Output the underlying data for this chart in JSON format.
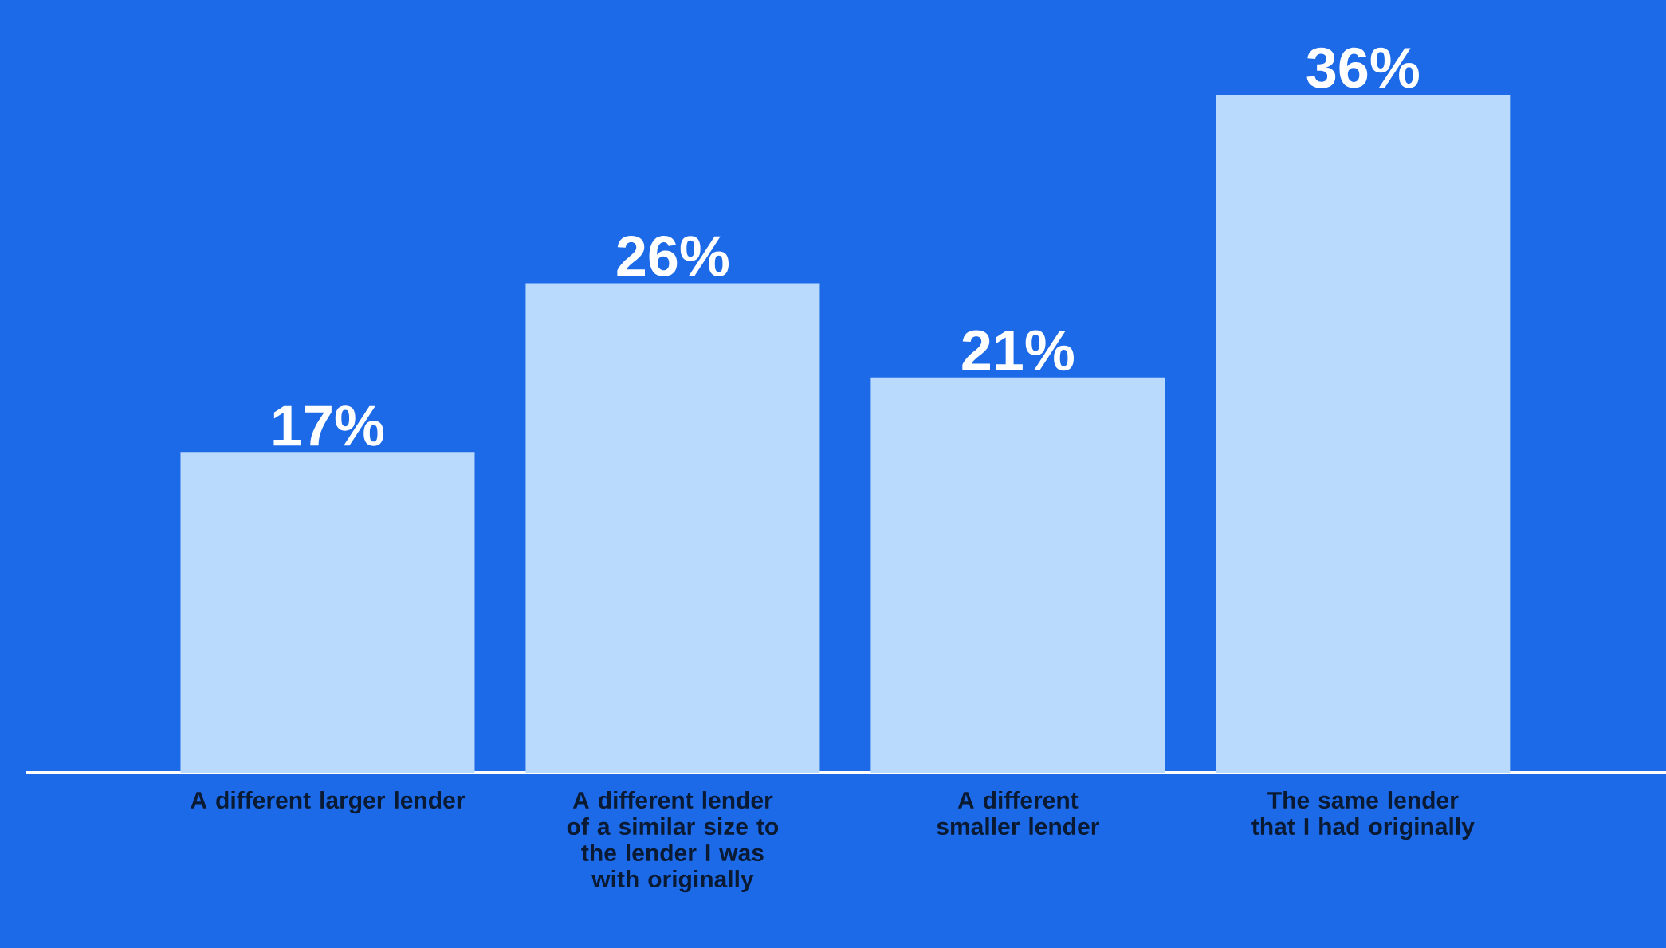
{
  "chart_data": {
    "type": "bar",
    "categories": [
      "A different larger lender",
      "A different lender of a similar size to the lender I was with originally",
      "A different smaller lender",
      "The same lender that I had originally"
    ],
    "values": [
      17,
      26,
      21,
      36
    ],
    "value_labels": [
      "17%",
      "26%",
      "21%",
      "36%"
    ],
    "color": "#b9d9fd"
  }
}
